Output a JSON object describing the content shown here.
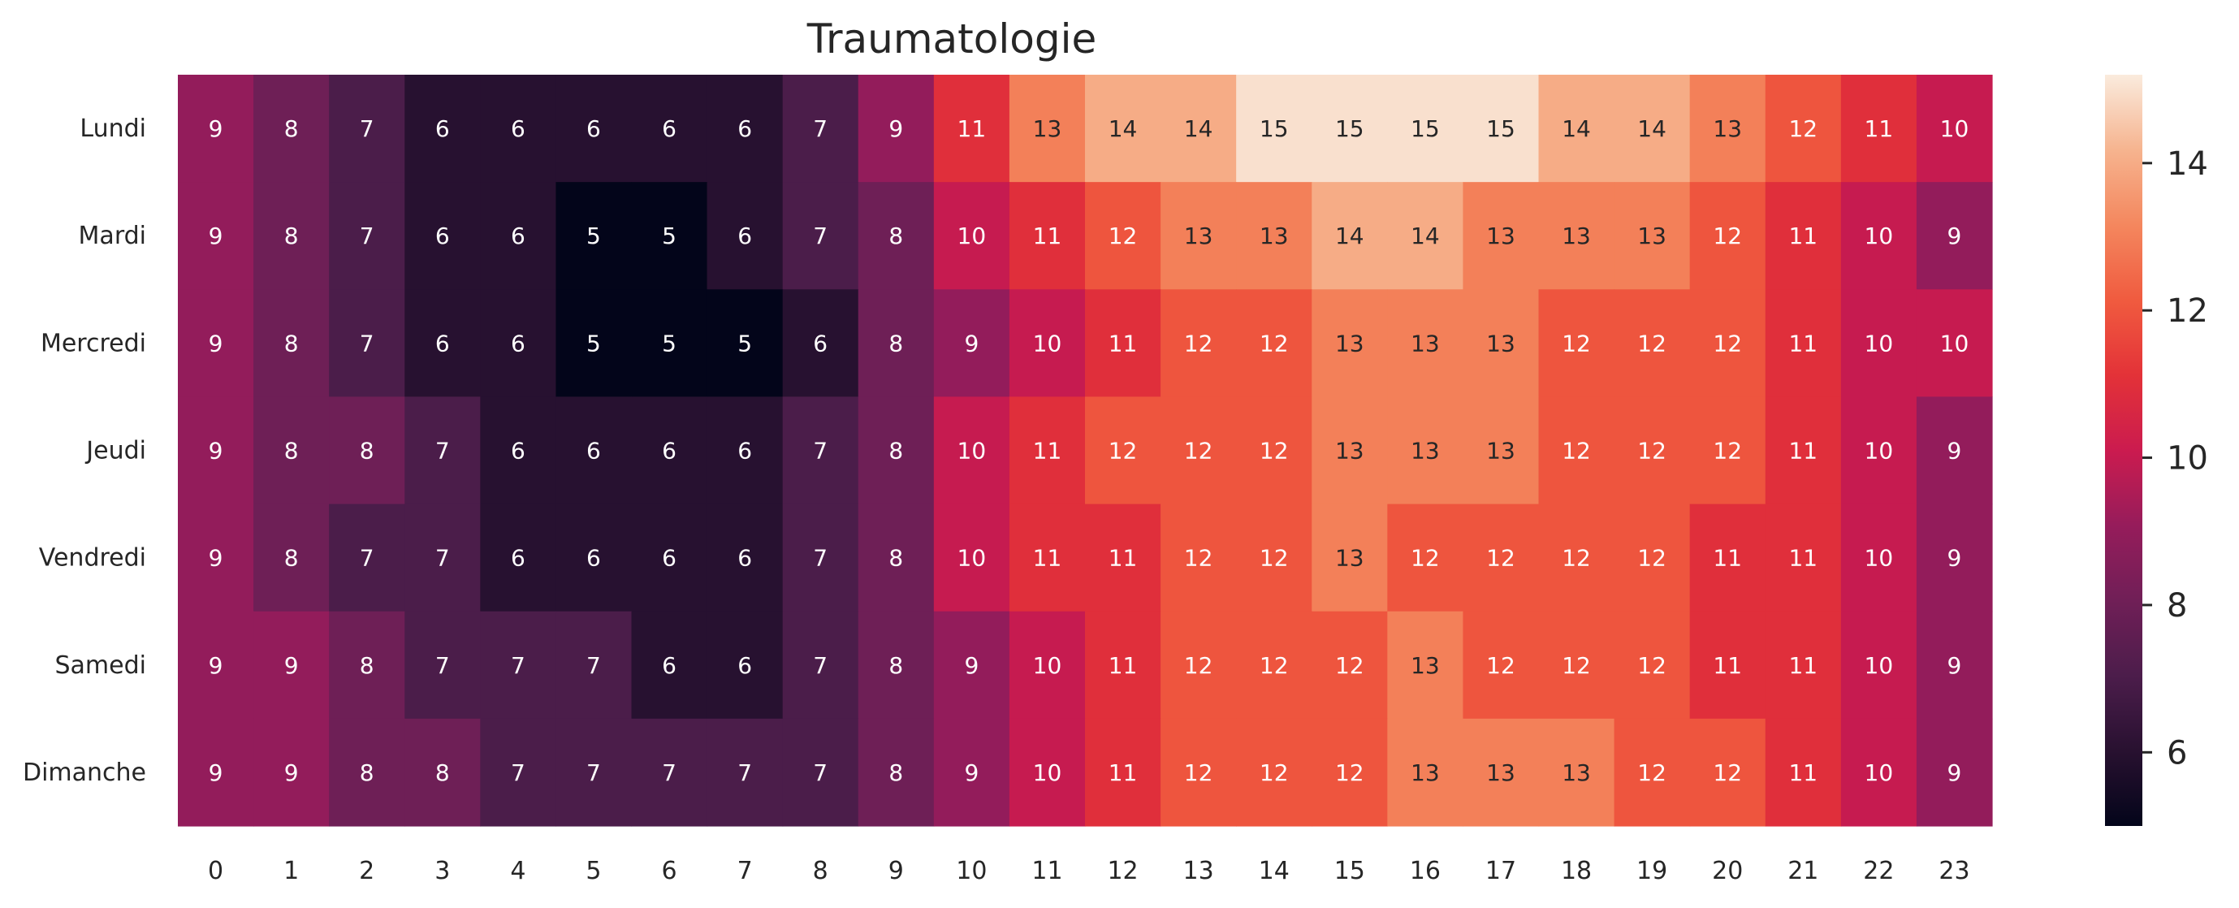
{
  "chart_data": {
    "type": "heatmap",
    "title": "Traumatologie",
    "xlabel": "",
    "ylabel": "",
    "x": [
      0,
      1,
      2,
      3,
      4,
      5,
      6,
      7,
      8,
      9,
      10,
      11,
      12,
      13,
      14,
      15,
      16,
      17,
      18,
      19,
      20,
      21,
      22,
      23
    ],
    "y": [
      "Lundi",
      "Mardi",
      "Mercredi",
      "Jeudi",
      "Vendredi",
      "Samedi",
      "Dimanche"
    ],
    "values": [
      [
        9,
        8,
        7,
        6,
        6,
        6,
        6,
        6,
        7,
        9,
        11,
        13,
        14,
        14,
        15,
        15,
        15,
        15,
        14,
        14,
        13,
        12,
        11,
        10
      ],
      [
        9,
        8,
        7,
        6,
        6,
        5,
        5,
        6,
        7,
        8,
        10,
        11,
        12,
        13,
        13,
        14,
        14,
        13,
        13,
        13,
        12,
        11,
        10,
        9
      ],
      [
        9,
        8,
        7,
        6,
        6,
        5,
        5,
        5,
        6,
        8,
        9,
        10,
        11,
        12,
        12,
        13,
        13,
        13,
        12,
        12,
        12,
        11,
        10,
        10
      ],
      [
        9,
        8,
        8,
        7,
        6,
        6,
        6,
        6,
        7,
        8,
        10,
        11,
        12,
        12,
        12,
        13,
        13,
        13,
        12,
        12,
        12,
        11,
        10,
        9
      ],
      [
        9,
        8,
        7,
        7,
        6,
        6,
        6,
        6,
        7,
        8,
        10,
        11,
        11,
        12,
        12,
        13,
        12,
        12,
        12,
        12,
        11,
        11,
        10,
        9
      ],
      [
        9,
        9,
        8,
        7,
        7,
        7,
        6,
        6,
        7,
        8,
        9,
        10,
        11,
        12,
        12,
        12,
        13,
        12,
        12,
        12,
        11,
        11,
        10,
        9
      ],
      [
        9,
        9,
        8,
        8,
        7,
        7,
        7,
        7,
        7,
        8,
        9,
        10,
        11,
        12,
        12,
        12,
        13,
        13,
        13,
        12,
        12,
        11,
        10,
        9
      ]
    ],
    "colorbar": {
      "range": [
        5,
        15.2
      ],
      "ticks": [
        6,
        8,
        10,
        12,
        14
      ]
    },
    "colormap": "rocket",
    "grid": false,
    "annotated": true
  }
}
